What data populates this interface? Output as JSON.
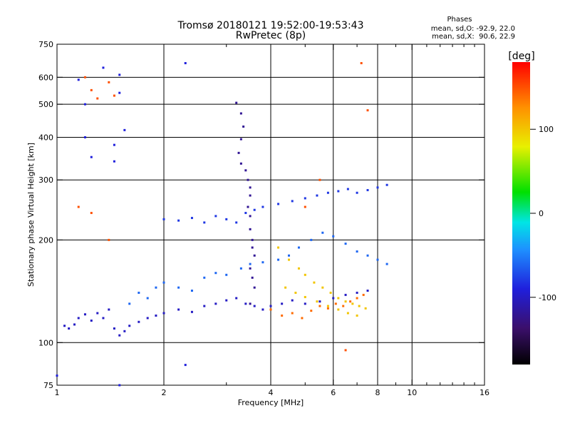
{
  "chart_data": {
    "type": "scatter",
    "title": "Tromsø 20180121 19:52:00-19:53:43",
    "subtitle": "RwPretec (8p)",
    "phase_stats": {
      "heading": "Phases",
      "line1": "mean, sd,O: -92.9, 22.0",
      "line2": "mean, sd,X:  90.6, 22.9"
    },
    "xlabel": "Frequency [MHz]",
    "ylabel": "Stationary phase Virtual Height [km]",
    "x_scale": "log",
    "y_scale": "log",
    "xlim": [
      1,
      16
    ],
    "ylim": [
      75,
      750
    ],
    "x_ticks": [
      1,
      2,
      4,
      6,
      8,
      10,
      16
    ],
    "x_tick_labels": [
      "1",
      "2",
      "4",
      "6",
      "8",
      "10",
      "16"
    ],
    "x_minor_ticks": [
      3,
      5,
      7,
      9,
      11,
      12,
      13,
      14,
      15
    ],
    "x_grid": [
      2,
      4,
      6,
      8,
      10
    ],
    "y_ticks": [
      75,
      100,
      200,
      300,
      400,
      500,
      600,
      750
    ],
    "y_tick_labels": [
      "75",
      "100",
      "200",
      "300",
      "400",
      "500",
      "600",
      "750"
    ],
    "y_grid": [
      100,
      200,
      300,
      400,
      500,
      600
    ],
    "grid": true,
    "colorbar": {
      "label": "[deg]",
      "range": [
        -180,
        180
      ],
      "ticks": [
        100,
        0,
        -100
      ],
      "tick_labels": [
        "100",
        "0",
        "-100"
      ],
      "placement": "right"
    },
    "colorscale": [
      "#000000",
      "#3b0f6b",
      "#1f1fdc",
      "#1e90ff",
      "#00e5e5",
      "#00e000",
      "#e8f000",
      "#ff9000",
      "#ff0000"
    ],
    "series": [
      {
        "values": [
          [
            1.05,
            112
          ],
          [
            1.08,
            110
          ],
          [
            1.12,
            113
          ],
          [
            1.15,
            118
          ],
          [
            1.2,
            121
          ],
          [
            1.25,
            116
          ],
          [
            1.3,
            122
          ],
          [
            1.35,
            118
          ],
          [
            1.4,
            125
          ],
          [
            1.45,
            110
          ],
          [
            1.5,
            105
          ],
          [
            1.55,
            108
          ],
          [
            1.6,
            112
          ],
          [
            1.7,
            115
          ],
          [
            1.8,
            118
          ],
          [
            1.9,
            120
          ],
          [
            2.0,
            122
          ],
          [
            2.2,
            125
          ],
          [
            2.4,
            123
          ],
          [
            2.6,
            128
          ],
          [
            2.8,
            130
          ],
          [
            3.0,
            133
          ],
          [
            3.2,
            135
          ],
          [
            3.4,
            130
          ],
          [
            3.6,
            128
          ],
          [
            3.8,
            125
          ],
          [
            4.0,
            128
          ],
          [
            4.3,
            130
          ],
          [
            4.6,
            133
          ],
          [
            5.0,
            130
          ],
          [
            5.5,
            132
          ],
          [
            6.0,
            135
          ],
          [
            6.5,
            138
          ],
          [
            7.0,
            140
          ],
          [
            7.5,
            142
          ]
        ],
        "phase": -100
      },
      {
        "values": [
          [
            1.6,
            130
          ],
          [
            1.7,
            140
          ],
          [
            1.8,
            135
          ],
          [
            1.9,
            145
          ],
          [
            2.0,
            150
          ],
          [
            2.2,
            145
          ],
          [
            2.4,
            142
          ],
          [
            2.6,
            155
          ],
          [
            2.8,
            160
          ],
          [
            3.0,
            158
          ],
          [
            3.3,
            165
          ],
          [
            3.5,
            170
          ],
          [
            3.8,
            172
          ],
          [
            4.2,
            175
          ],
          [
            4.5,
            180
          ],
          [
            4.8,
            190
          ],
          [
            5.2,
            200
          ],
          [
            5.6,
            210
          ],
          [
            6.0,
            205
          ],
          [
            6.5,
            195
          ],
          [
            7.0,
            185
          ],
          [
            7.5,
            180
          ],
          [
            8.0,
            175
          ],
          [
            8.5,
            170
          ]
        ],
        "phase": -60
      },
      {
        "values": [
          [
            2.0,
            230
          ],
          [
            2.2,
            228
          ],
          [
            2.4,
            232
          ],
          [
            2.6,
            225
          ],
          [
            2.8,
            235
          ],
          [
            3.0,
            230
          ],
          [
            3.2,
            225
          ],
          [
            3.4,
            240
          ],
          [
            3.6,
            245
          ],
          [
            3.8,
            250
          ],
          [
            4.2,
            255
          ],
          [
            4.6,
            260
          ],
          [
            5.0,
            265
          ],
          [
            5.4,
            270
          ],
          [
            5.8,
            275
          ],
          [
            6.2,
            278
          ],
          [
            6.6,
            282
          ],
          [
            7.0,
            275
          ],
          [
            7.5,
            280
          ],
          [
            8.0,
            285
          ],
          [
            8.5,
            290
          ]
        ],
        "phase": -80
      },
      {
        "values": [
          [
            3.2,
            505
          ],
          [
            3.3,
            470
          ],
          [
            3.35,
            430
          ],
          [
            3.3,
            395
          ],
          [
            3.25,
            360
          ],
          [
            3.3,
            335
          ],
          [
            3.4,
            320
          ],
          [
            3.45,
            300
          ],
          [
            3.5,
            285
          ],
          [
            3.5,
            270
          ],
          [
            3.45,
            250
          ],
          [
            3.5,
            235
          ],
          [
            3.5,
            215
          ],
          [
            3.55,
            200
          ],
          [
            3.55,
            190
          ],
          [
            3.6,
            180
          ],
          [
            3.5,
            165
          ],
          [
            3.55,
            155
          ],
          [
            3.6,
            145
          ],
          [
            3.5,
            130
          ]
        ],
        "phase": -120
      },
      {
        "values": [
          [
            4.2,
            190
          ],
          [
            4.5,
            175
          ],
          [
            4.8,
            165
          ],
          [
            5.0,
            158
          ],
          [
            5.3,
            150
          ],
          [
            5.6,
            145
          ],
          [
            5.9,
            140
          ],
          [
            6.2,
            135
          ],
          [
            6.5,
            132
          ],
          [
            6.8,
            130
          ],
          [
            7.1,
            128
          ],
          [
            7.4,
            126
          ],
          [
            4.4,
            145
          ],
          [
            4.7,
            140
          ],
          [
            5.0,
            136
          ],
          [
            5.4,
            132
          ],
          [
            5.8,
            128
          ],
          [
            6.2,
            125
          ],
          [
            6.6,
            122
          ],
          [
            7.0,
            120
          ]
        ],
        "phase": 100
      },
      {
        "values": [
          [
            4.0,
            125
          ],
          [
            4.3,
            120
          ],
          [
            4.6,
            122
          ],
          [
            4.9,
            118
          ],
          [
            5.2,
            124
          ],
          [
            5.5,
            128
          ],
          [
            5.8,
            126
          ],
          [
            6.1,
            130
          ],
          [
            6.4,
            128
          ],
          [
            6.7,
            132
          ],
          [
            7.0,
            135
          ],
          [
            7.3,
            138
          ]
        ],
        "phase": 140
      },
      {
        "values": [
          [
            1.2,
            600
          ],
          [
            1.25,
            550
          ],
          [
            1.3,
            520
          ],
          [
            1.4,
            580
          ],
          [
            1.45,
            530
          ],
          [
            7.2,
            660
          ],
          [
            7.5,
            480
          ],
          [
            1.15,
            250
          ],
          [
            1.25,
            240
          ],
          [
            1.4,
            200
          ],
          [
            5.0,
            250
          ],
          [
            5.5,
            300
          ],
          [
            6.5,
            95
          ]
        ],
        "phase": 150
      },
      {
        "values": [
          [
            1.15,
            590
          ],
          [
            1.2,
            500
          ],
          [
            1.2,
            400
          ],
          [
            1.25,
            350
          ],
          [
            1.35,
            640
          ],
          [
            1.5,
            610
          ],
          [
            1.5,
            540
          ],
          [
            1.45,
            380
          ],
          [
            1.45,
            340
          ],
          [
            1.55,
            420
          ],
          [
            2.3,
            660
          ],
          [
            2.3,
            86
          ],
          [
            1.5,
            75
          ],
          [
            1.0,
            80
          ]
        ],
        "phase": -90
      }
    ]
  }
}
